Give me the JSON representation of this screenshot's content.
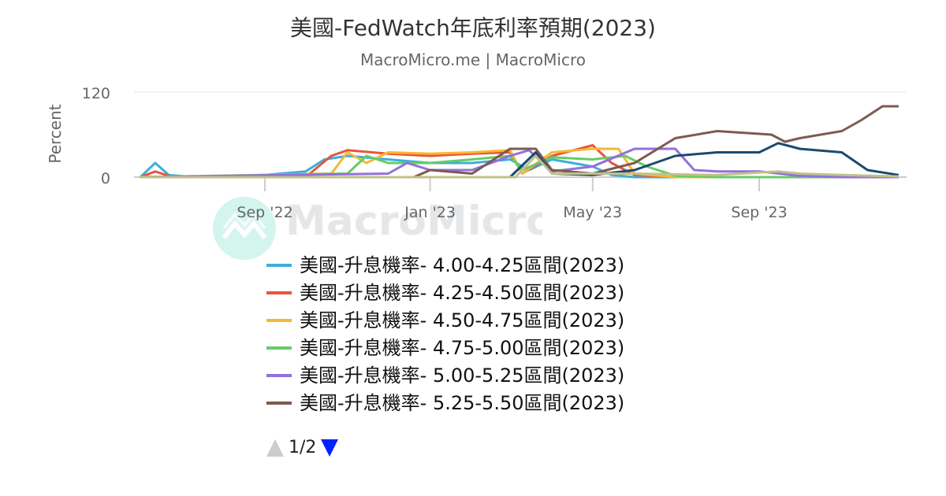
{
  "title": "美國-FedWatch年底利率預期(2023)",
  "subtitle": "MacroMicro.me | MacroMicro",
  "watermark": "MacroMicro",
  "legend_nav": {
    "page": "1/2",
    "up_color": "#cccccc",
    "down_color": "#0022ff"
  },
  "chart_data": {
    "type": "line",
    "title": "美國-FedWatch年底利率預期(2023)",
    "ylabel": "Percent",
    "ylim": [
      0,
      120
    ],
    "y_ticks": [
      "0",
      "120"
    ],
    "x_ticks": [
      {
        "label": "Sep '22",
        "date": "2022-09-01"
      },
      {
        "label": "Jan '23",
        "date": "2023-01-01"
      },
      {
        "label": "May '23",
        "date": "2023-05-01"
      },
      {
        "label": "Sep '23",
        "date": "2023-09-01"
      }
    ],
    "xlim": [
      "2022-06-01",
      "2023-12-13"
    ],
    "grid": true,
    "legend_placement": "bottom",
    "series": [
      {
        "name": "美國-升息機率- 4.00-4.25區間(2023)",
        "color": "#3cb0d8",
        "points": [
          [
            "2022-06-01",
            0
          ],
          [
            "2022-06-12",
            20
          ],
          [
            "2022-06-22",
            3
          ],
          [
            "2022-07-10",
            0
          ],
          [
            "2022-08-15",
            0
          ],
          [
            "2022-09-01",
            3
          ],
          [
            "2022-10-01",
            8
          ],
          [
            "2022-10-15",
            25
          ],
          [
            "2022-11-01",
            30
          ],
          [
            "2022-12-01",
            25
          ],
          [
            "2023-01-01",
            20
          ],
          [
            "2023-02-01",
            20
          ],
          [
            "2023-03-01",
            25
          ],
          [
            "2023-03-15",
            10
          ],
          [
            "2023-04-01",
            25
          ],
          [
            "2023-05-01",
            15
          ],
          [
            "2023-05-15",
            3
          ],
          [
            "2023-06-01",
            0
          ],
          [
            "2023-12-13",
            0
          ]
        ]
      },
      {
        "name": "美國-升息機率- 4.25-4.50區間(2023)",
        "color": "#e8553c",
        "points": [
          [
            "2022-06-01",
            0
          ],
          [
            "2022-06-12",
            8
          ],
          [
            "2022-06-25",
            0
          ],
          [
            "2022-10-01",
            0
          ],
          [
            "2022-10-20",
            30
          ],
          [
            "2022-11-01",
            38
          ],
          [
            "2022-12-01",
            33
          ],
          [
            "2023-01-01",
            30
          ],
          [
            "2023-02-01",
            33
          ],
          [
            "2023-03-01",
            35
          ],
          [
            "2023-03-10",
            5
          ],
          [
            "2023-04-01",
            30
          ],
          [
            "2023-05-01",
            45
          ],
          [
            "2023-05-15",
            20
          ],
          [
            "2023-06-01",
            3
          ],
          [
            "2023-07-01",
            0
          ],
          [
            "2023-12-13",
            0
          ]
        ]
      },
      {
        "name": "美國-升息機率- 4.50-4.75區間(2023)",
        "color": "#f7b733",
        "points": [
          [
            "2022-06-01",
            0
          ],
          [
            "2022-10-20",
            5
          ],
          [
            "2022-11-01",
            35
          ],
          [
            "2022-11-15",
            20
          ],
          [
            "2022-12-01",
            35
          ],
          [
            "2023-01-01",
            33
          ],
          [
            "2023-02-01",
            35
          ],
          [
            "2023-03-01",
            38
          ],
          [
            "2023-03-10",
            5
          ],
          [
            "2023-04-01",
            35
          ],
          [
            "2023-05-01",
            40
          ],
          [
            "2023-05-20",
            40
          ],
          [
            "2023-06-01",
            5
          ],
          [
            "2023-07-01",
            0
          ],
          [
            "2023-12-13",
            0
          ]
        ]
      },
      {
        "name": "美國-升息機率- 4.75-5.00區間(2023)",
        "color": "#66cc66",
        "points": [
          [
            "2022-06-01",
            0
          ],
          [
            "2022-11-01",
            5
          ],
          [
            "2022-11-15",
            30
          ],
          [
            "2022-12-01",
            20
          ],
          [
            "2023-01-01",
            20
          ],
          [
            "2023-02-01",
            25
          ],
          [
            "2023-03-01",
            30
          ],
          [
            "2023-03-10",
            10
          ],
          [
            "2023-04-01",
            28
          ],
          [
            "2023-05-01",
            25
          ],
          [
            "2023-05-25",
            30
          ],
          [
            "2023-06-10",
            15
          ],
          [
            "2023-07-01",
            2
          ],
          [
            "2023-08-01",
            0
          ],
          [
            "2023-12-13",
            0
          ]
        ]
      },
      {
        "name": "美國-升息機率- 5.00-5.25區間(2023)",
        "color": "#9370db",
        "points": [
          [
            "2022-06-01",
            0
          ],
          [
            "2022-12-01",
            5
          ],
          [
            "2022-12-15",
            20
          ],
          [
            "2023-01-01",
            10
          ],
          [
            "2023-02-01",
            10
          ],
          [
            "2023-03-01",
            30
          ],
          [
            "2023-03-15",
            38
          ],
          [
            "2023-04-01",
            8
          ],
          [
            "2023-05-01",
            15
          ],
          [
            "2023-06-01",
            40
          ],
          [
            "2023-07-01",
            40
          ],
          [
            "2023-07-15",
            10
          ],
          [
            "2023-08-01",
            8
          ],
          [
            "2023-09-01",
            8
          ],
          [
            "2023-10-01",
            2
          ],
          [
            "2023-11-01",
            0
          ],
          [
            "2023-12-13",
            0
          ]
        ]
      },
      {
        "name": "美國-升息機率- 5.25-5.50區間(2023)",
        "color": "#7e5a4e",
        "points": [
          [
            "2022-06-01",
            0
          ],
          [
            "2022-12-20",
            0
          ],
          [
            "2023-01-01",
            10
          ],
          [
            "2023-02-01",
            5
          ],
          [
            "2023-03-01",
            40
          ],
          [
            "2023-03-20",
            40
          ],
          [
            "2023-04-01",
            10
          ],
          [
            "2023-05-01",
            5
          ],
          [
            "2023-06-01",
            20
          ],
          [
            "2023-07-01",
            55
          ],
          [
            "2023-08-01",
            65
          ],
          [
            "2023-09-10",
            60
          ],
          [
            "2023-09-20",
            50
          ],
          [
            "2023-10-01",
            55
          ],
          [
            "2023-11-01",
            65
          ],
          [
            "2023-11-15",
            80
          ],
          [
            "2023-12-01",
            100
          ],
          [
            "2023-12-13",
            100
          ]
        ]
      },
      {
        "name": "",
        "color": "#1a4a70",
        "points": [
          [
            "2022-06-01",
            0
          ],
          [
            "2023-03-01",
            0
          ],
          [
            "2023-03-20",
            35
          ],
          [
            "2023-04-01",
            5
          ],
          [
            "2023-05-01",
            3
          ],
          [
            "2023-06-01",
            10
          ],
          [
            "2023-07-01",
            30
          ],
          [
            "2023-08-01",
            35
          ],
          [
            "2023-09-01",
            35
          ],
          [
            "2023-09-15",
            48
          ],
          [
            "2023-10-01",
            40
          ],
          [
            "2023-11-01",
            35
          ],
          [
            "2023-11-20",
            10
          ],
          [
            "2023-12-13",
            3
          ]
        ]
      },
      {
        "name": "",
        "color": "#c2c08a",
        "points": [
          [
            "2022-06-01",
            0
          ],
          [
            "2023-03-05",
            0
          ],
          [
            "2023-03-20",
            30
          ],
          [
            "2023-04-01",
            5
          ],
          [
            "2023-06-01",
            5
          ],
          [
            "2023-08-01",
            3
          ],
          [
            "2023-09-15",
            8
          ],
          [
            "2023-10-01",
            5
          ],
          [
            "2023-11-01",
            3
          ],
          [
            "2023-12-13",
            1
          ]
        ]
      }
    ]
  }
}
